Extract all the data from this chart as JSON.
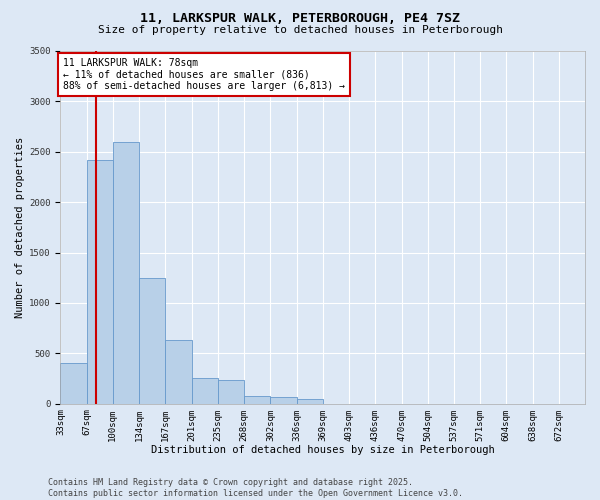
{
  "title": "11, LARKSPUR WALK, PETERBOROUGH, PE4 7SZ",
  "subtitle": "Size of property relative to detached houses in Peterborough",
  "xlabel": "Distribution of detached houses by size in Peterborough",
  "ylabel": "Number of detached properties",
  "bar_edges": [
    33,
    67,
    100,
    134,
    167,
    201,
    235,
    268,
    302,
    336,
    369,
    403,
    436,
    470,
    504,
    537,
    571,
    604,
    638,
    672,
    705
  ],
  "bar_heights": [
    400,
    2420,
    2600,
    1250,
    630,
    260,
    240,
    80,
    70,
    50,
    0,
    0,
    0,
    0,
    0,
    0,
    0,
    0,
    0,
    0
  ],
  "bar_color": "#b8d0e8",
  "bar_edge_color": "#6699cc",
  "property_size": 78,
  "annotation_text": "11 LARKSPUR WALK: 78sqm\n← 11% of detached houses are smaller (836)\n88% of semi-detached houses are larger (6,813) →",
  "annotation_box_color": "#ffffff",
  "annotation_box_edge_color": "#cc0000",
  "vline_color": "#cc0000",
  "ylim": [
    0,
    3500
  ],
  "yticks": [
    0,
    500,
    1000,
    1500,
    2000,
    2500,
    3000,
    3500
  ],
  "bg_color": "#dde8f5",
  "grid_color": "#ffffff",
  "footer": "Contains HM Land Registry data © Crown copyright and database right 2025.\nContains public sector information licensed under the Open Government Licence v3.0.",
  "title_fontsize": 9.5,
  "subtitle_fontsize": 8,
  "axis_label_fontsize": 7.5,
  "tick_fontsize": 6.5,
  "annotation_fontsize": 7,
  "footer_fontsize": 6
}
